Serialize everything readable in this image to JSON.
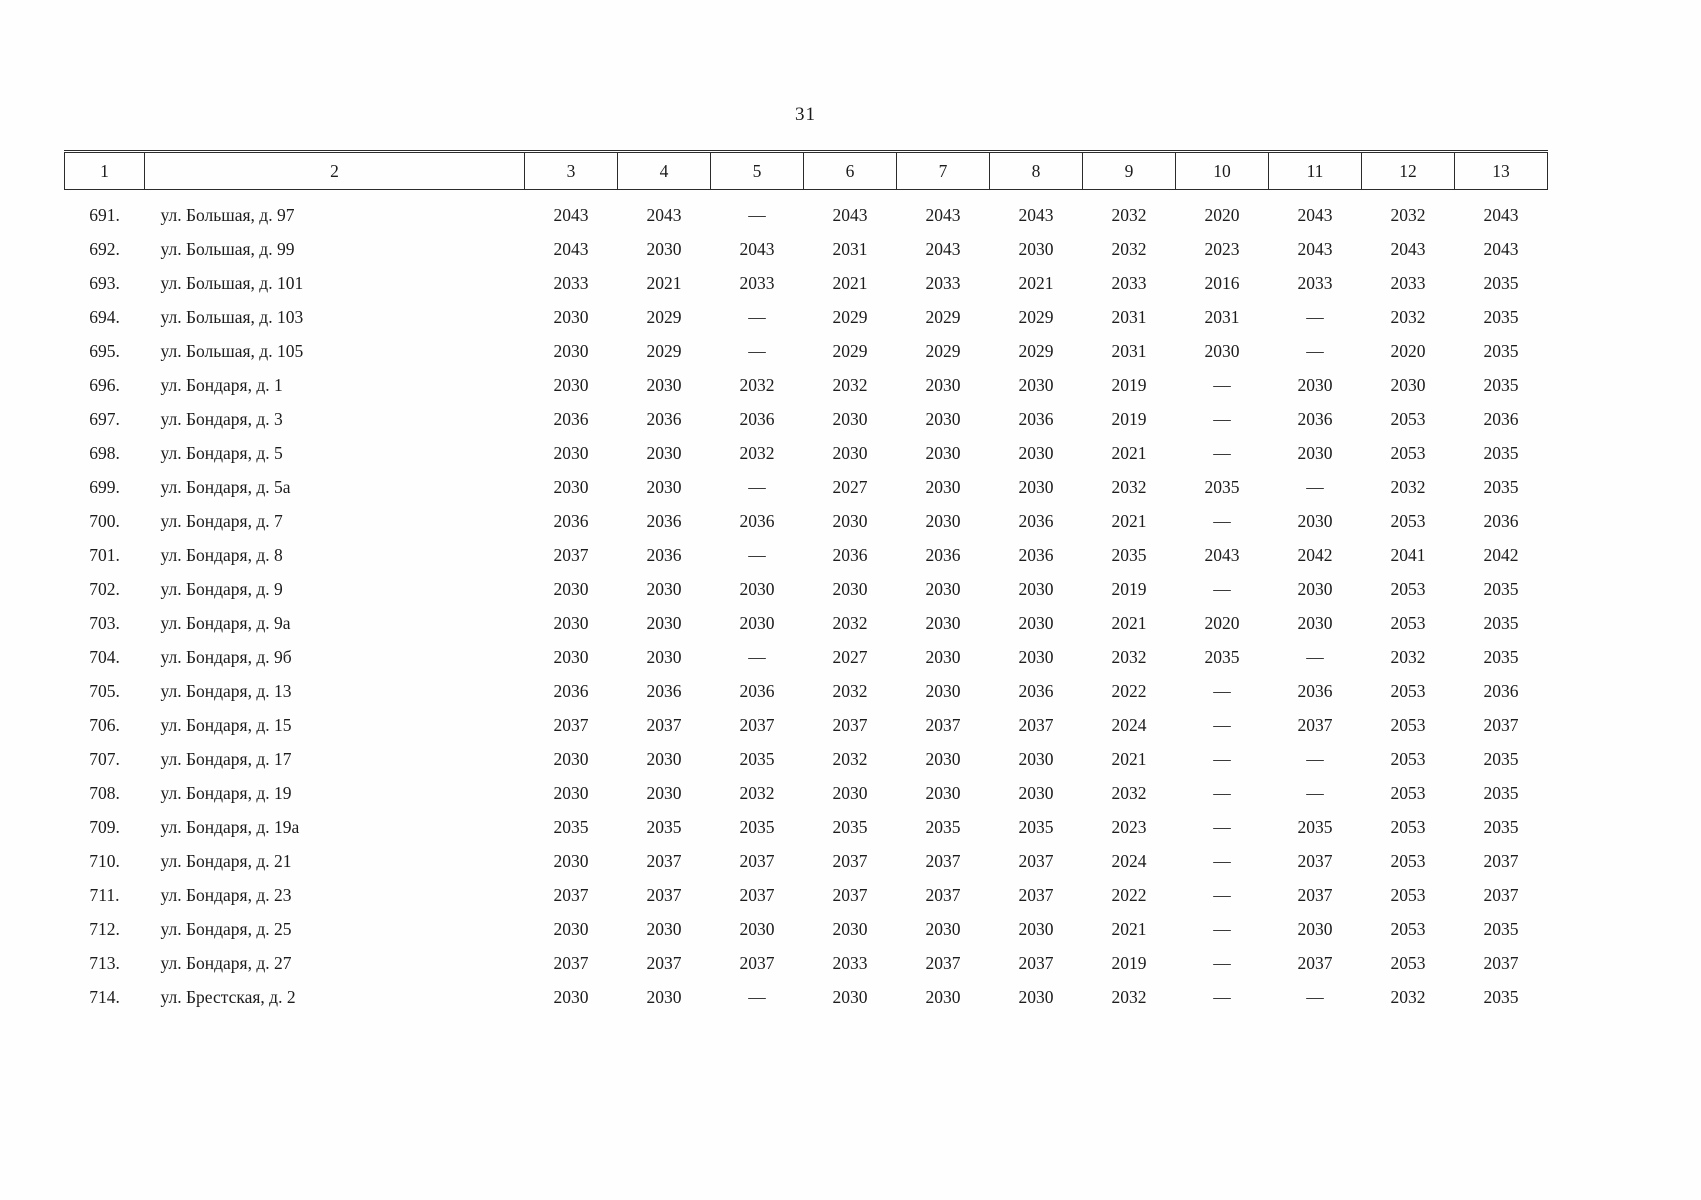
{
  "page": {
    "number": "31"
  },
  "table": {
    "header": [
      "1",
      "2",
      "3",
      "4",
      "5",
      "6",
      "7",
      "8",
      "9",
      "10",
      "11",
      "12",
      "13"
    ],
    "rows": [
      {
        "num": "691.",
        "address": "ул. Большая, д. 97",
        "values": [
          "2043",
          "2043",
          "—",
          "2043",
          "2043",
          "2043",
          "2032",
          "2020",
          "2043",
          "2032",
          "2043"
        ]
      },
      {
        "num": "692.",
        "address": "ул. Большая, д. 99",
        "values": [
          "2043",
          "2030",
          "2043",
          "2031",
          "2043",
          "2030",
          "2032",
          "2023",
          "2043",
          "2043",
          "2043"
        ]
      },
      {
        "num": "693.",
        "address": "ул. Большая, д. 101",
        "values": [
          "2033",
          "2021",
          "2033",
          "2021",
          "2033",
          "2021",
          "2033",
          "2016",
          "2033",
          "2033",
          "2035"
        ]
      },
      {
        "num": "694.",
        "address": "ул. Большая, д. 103",
        "values": [
          "2030",
          "2029",
          "—",
          "2029",
          "2029",
          "2029",
          "2031",
          "2031",
          "—",
          "2032",
          "2035"
        ]
      },
      {
        "num": "695.",
        "address": "ул. Большая, д. 105",
        "values": [
          "2030",
          "2029",
          "—",
          "2029",
          "2029",
          "2029",
          "2031",
          "2030",
          "—",
          "2020",
          "2035"
        ]
      },
      {
        "num": "696.",
        "address": "ул. Бондаря, д. 1",
        "values": [
          "2030",
          "2030",
          "2032",
          "2032",
          "2030",
          "2030",
          "2019",
          "—",
          "2030",
          "2030",
          "2035"
        ]
      },
      {
        "num": "697.",
        "address": "ул. Бондаря, д. 3",
        "values": [
          "2036",
          "2036",
          "2036",
          "2030",
          "2030",
          "2036",
          "2019",
          "—",
          "2036",
          "2053",
          "2036"
        ]
      },
      {
        "num": "698.",
        "address": "ул. Бондаря, д. 5",
        "values": [
          "2030",
          "2030",
          "2032",
          "2030",
          "2030",
          "2030",
          "2021",
          "—",
          "2030",
          "2053",
          "2035"
        ]
      },
      {
        "num": "699.",
        "address": "ул. Бондаря, д. 5а",
        "values": [
          "2030",
          "2030",
          "—",
          "2027",
          "2030",
          "2030",
          "2032",
          "2035",
          "—",
          "2032",
          "2035"
        ]
      },
      {
        "num": "700.",
        "address": "ул. Бондаря, д. 7",
        "values": [
          "2036",
          "2036",
          "2036",
          "2030",
          "2030",
          "2036",
          "2021",
          "—",
          "2030",
          "2053",
          "2036"
        ]
      },
      {
        "num": "701.",
        "address": "ул. Бондаря, д. 8",
        "values": [
          "2037",
          "2036",
          "—",
          "2036",
          "2036",
          "2036",
          "2035",
          "2043",
          "2042",
          "2041",
          "2042"
        ]
      },
      {
        "num": "702.",
        "address": "ул. Бондаря, д. 9",
        "values": [
          "2030",
          "2030",
          "2030",
          "2030",
          "2030",
          "2030",
          "2019",
          "—",
          "2030",
          "2053",
          "2035"
        ]
      },
      {
        "num": "703.",
        "address": "ул. Бондаря, д. 9а",
        "values": [
          "2030",
          "2030",
          "2030",
          "2032",
          "2030",
          "2030",
          "2021",
          "2020",
          "2030",
          "2053",
          "2035"
        ]
      },
      {
        "num": "704.",
        "address": "ул. Бондаря, д. 9б",
        "values": [
          "2030",
          "2030",
          "—",
          "2027",
          "2030",
          "2030",
          "2032",
          "2035",
          "—",
          "2032",
          "2035"
        ]
      },
      {
        "num": "705.",
        "address": "ул. Бондаря, д. 13",
        "values": [
          "2036",
          "2036",
          "2036",
          "2032",
          "2030",
          "2036",
          "2022",
          "—",
          "2036",
          "2053",
          "2036"
        ]
      },
      {
        "num": "706.",
        "address": "ул. Бондаря, д. 15",
        "values": [
          "2037",
          "2037",
          "2037",
          "2037",
          "2037",
          "2037",
          "2024",
          "—",
          "2037",
          "2053",
          "2037"
        ]
      },
      {
        "num": "707.",
        "address": "ул. Бондаря, д. 17",
        "values": [
          "2030",
          "2030",
          "2035",
          "2032",
          "2030",
          "2030",
          "2021",
          "—",
          "—",
          "2053",
          "2035"
        ]
      },
      {
        "num": "708.",
        "address": "ул. Бондаря, д. 19",
        "values": [
          "2030",
          "2030",
          "2032",
          "2030",
          "2030",
          "2030",
          "2032",
          "—",
          "—",
          "2053",
          "2035"
        ]
      },
      {
        "num": "709.",
        "address": "ул. Бондаря, д. 19а",
        "values": [
          "2035",
          "2035",
          "2035",
          "2035",
          "2035",
          "2035",
          "2023",
          "—",
          "2035",
          "2053",
          "2035"
        ]
      },
      {
        "num": "710.",
        "address": "ул. Бондаря, д. 21",
        "values": [
          "2030",
          "2037",
          "2037",
          "2037",
          "2037",
          "2037",
          "2024",
          "—",
          "2037",
          "2053",
          "2037"
        ]
      },
      {
        "num": "711.",
        "address": "ул. Бондаря, д. 23",
        "values": [
          "2037",
          "2037",
          "2037",
          "2037",
          "2037",
          "2037",
          "2022",
          "—",
          "2037",
          "2053",
          "2037"
        ]
      },
      {
        "num": "712.",
        "address": "ул. Бондаря, д. 25",
        "values": [
          "2030",
          "2030",
          "2030",
          "2030",
          "2030",
          "2030",
          "2021",
          "—",
          "2030",
          "2053",
          "2035"
        ]
      },
      {
        "num": "713.",
        "address": "ул. Бондаря, д. 27",
        "values": [
          "2037",
          "2037",
          "2037",
          "2033",
          "2037",
          "2037",
          "2019",
          "—",
          "2037",
          "2053",
          "2037"
        ]
      },
      {
        "num": "714.",
        "address": "ул. Брестская, д. 2",
        "values": [
          "2030",
          "2030",
          "—",
          "2030",
          "2030",
          "2030",
          "2032",
          "—",
          "—",
          "2032",
          "2035"
        ]
      }
    ]
  }
}
